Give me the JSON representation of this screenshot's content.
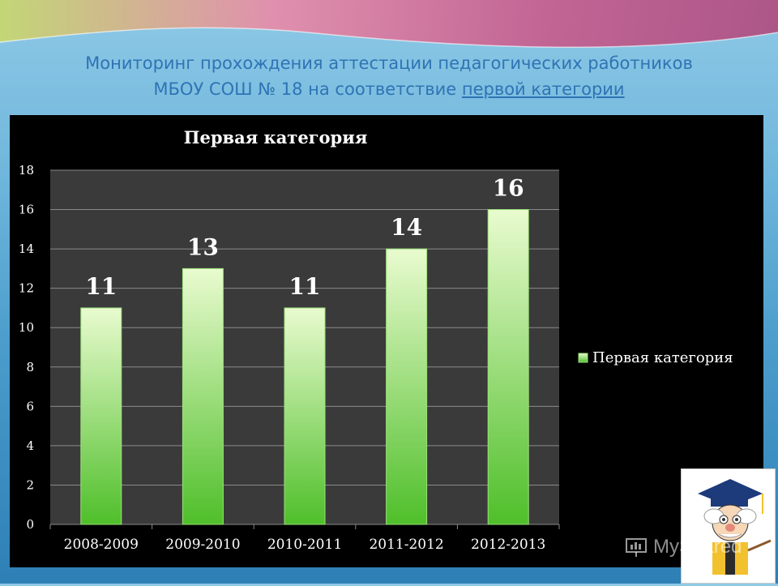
{
  "slide": {
    "title_line1": "Мониторинг прохождения аттестации педагогических работников",
    "title_line2_prefix": "МБОУ СОШ № 18 на соответствие ",
    "title_line2_underlined": "первой категории"
  },
  "watermark": {
    "text": "MyShared"
  },
  "colors": {
    "title": "#2e74b5",
    "bar_top": "#e9fbcf",
    "bar_bottom": "#4fbf2a",
    "plot_bg": "#3a3a3a",
    "chart_bg": "#000000"
  },
  "chart_data": {
    "type": "bar",
    "title": "Первая категория",
    "categories": [
      "2008-2009",
      "2009-2010",
      "2010-2011",
      "2011-2012",
      "2012-2013"
    ],
    "series": [
      {
        "name": "Первая категория",
        "values": [
          11,
          13,
          11,
          14,
          16
        ]
      }
    ],
    "ylim": [
      0,
      18
    ],
    "yticks": [
      0,
      2,
      4,
      6,
      8,
      10,
      12,
      14,
      16,
      18
    ],
    "grid": true,
    "legend": "right",
    "data_labels": true
  }
}
